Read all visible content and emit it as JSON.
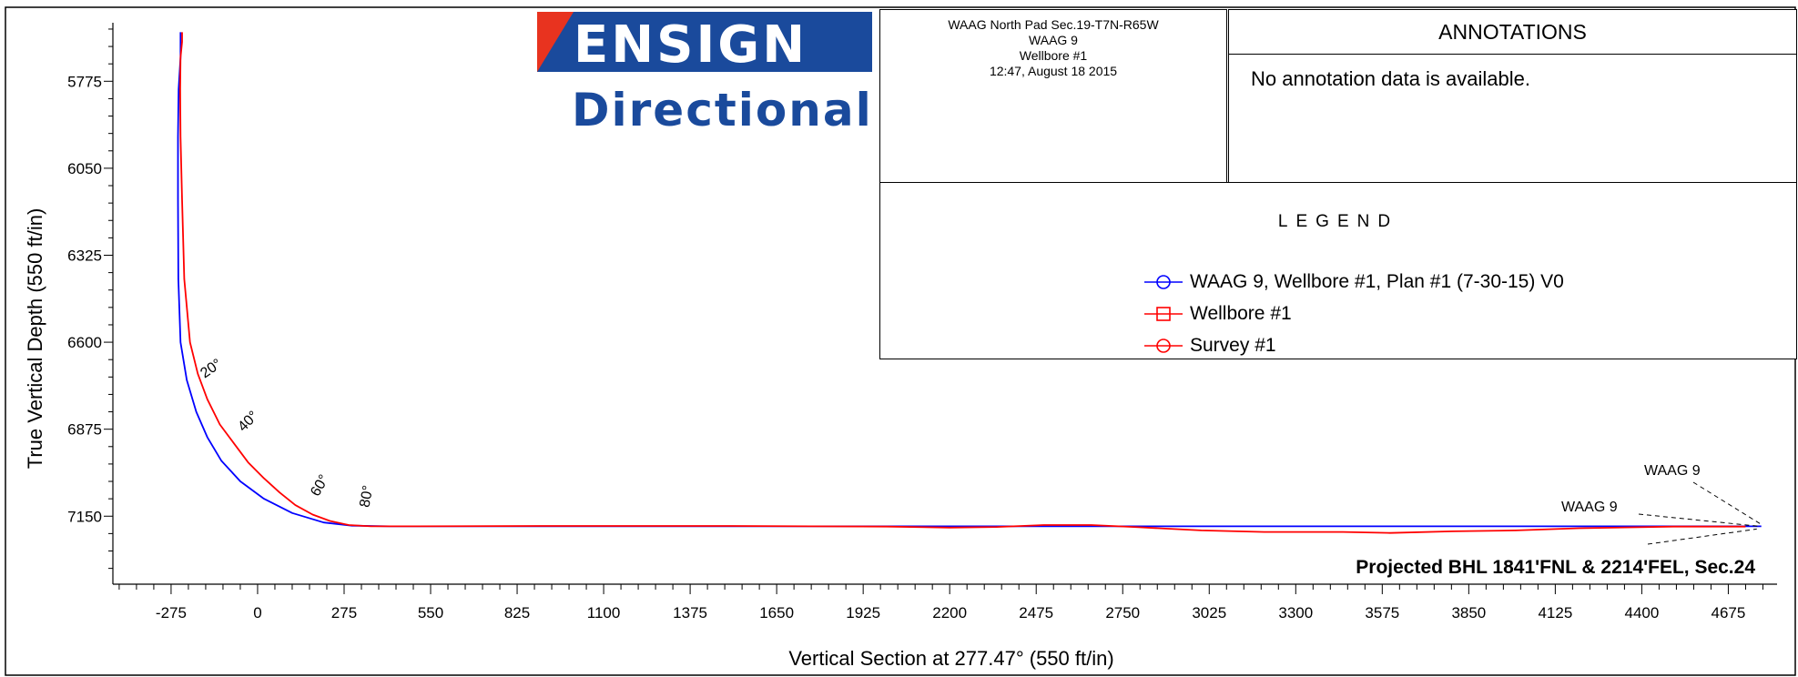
{
  "header": {
    "lines": [
      "WAAG North Pad Sec.19-T7N-R65W",
      "WAAG 9",
      "Wellbore  #1",
      "12:47, August 18 2015"
    ]
  },
  "logo": {
    "word": "ENSIGN",
    "sub": "Directional",
    "colors": {
      "blue": "#1a4a9c",
      "red": "#e8331f"
    }
  },
  "annotations": {
    "title": "ANNOTATIONS",
    "text": "No annotation data is available."
  },
  "legend": {
    "title": "LEGEND",
    "items": [
      {
        "label": "WAAG 9, Wellbore #1, Plan #1 (7-30-15) V0",
        "color": "#0000ff",
        "marker": "circle"
      },
      {
        "label": "Wellbore  #1",
        "color": "#ff0000",
        "marker": "square"
      },
      {
        "label": "Survey  #1",
        "color": "#ff0000",
        "marker": "circle"
      }
    ]
  },
  "chart_data": {
    "type": "line",
    "xlabel": "Vertical Section at 277.47° (550 ft/in)",
    "ylabel": "True Vertical Depth (550 ft/in)",
    "xlim": [
      -460,
      4830
    ],
    "ylim": [
      7365,
      5590
    ],
    "xticks": [
      -275,
      0,
      275,
      550,
      825,
      1100,
      1375,
      1650,
      1925,
      2200,
      2475,
      2750,
      3025,
      3300,
      3575,
      3850,
      4125,
      4400,
      4675
    ],
    "yticks": [
      5775,
      6050,
      6325,
      6600,
      6875,
      7150
    ],
    "series": [
      {
        "name": "WAAG 9, Wellbore #1, Plan #1 (7-30-15) V0",
        "color": "#0000ff",
        "x": [
          -245,
          -245,
          -251,
          -253,
          -253,
          -252,
          -245,
          -225,
          -195,
          -160,
          -115,
          -55,
          20,
          110,
          210,
          300,
          420,
          800,
          1500,
          2500,
          3500,
          4700,
          4780
        ],
        "y": [
          5620,
          5700,
          5800,
          5950,
          6150,
          6400,
          6600,
          6720,
          6820,
          6900,
          6975,
          7040,
          7095,
          7140,
          7170,
          7180,
          7182,
          7182,
          7182,
          7182,
          7182,
          7182,
          7182
        ]
      },
      {
        "name": "Survey  #1",
        "color": "#ff0000",
        "x": [
          -240,
          -240,
          -245,
          -246,
          -245,
          -240,
          -233,
          -215,
          -190,
          -160,
          -120,
          -75,
          -30,
          20,
          70,
          120,
          175,
          230,
          290,
          360,
          500,
          900,
          1500,
          2000,
          2200,
          2350,
          2500,
          2650,
          2800,
          3000,
          3200,
          3450,
          3600,
          3800,
          4000,
          4200,
          4500,
          4700,
          4730
        ],
        "y": [
          5620,
          5650,
          5700,
          5800,
          5950,
          6150,
          6400,
          6600,
          6700,
          6780,
          6860,
          6920,
          6980,
          7030,
          7075,
          7115,
          7145,
          7165,
          7178,
          7182,
          7182,
          7181,
          7181,
          7183,
          7186,
          7184,
          7178,
          7178,
          7185,
          7195,
          7200,
          7200,
          7203,
          7198,
          7195,
          7188,
          7183,
          7183,
          7183
        ]
      }
    ],
    "inclination_labels": [
      "20°",
      "40°",
      "60°",
      "80°"
    ],
    "annotations": [
      {
        "text": "WAAG 9"
      },
      {
        "text": "WAAG 9"
      },
      {
        "text": "Projected BHL 1841'FNL & 2214'FEL, Sec.24"
      }
    ]
  }
}
